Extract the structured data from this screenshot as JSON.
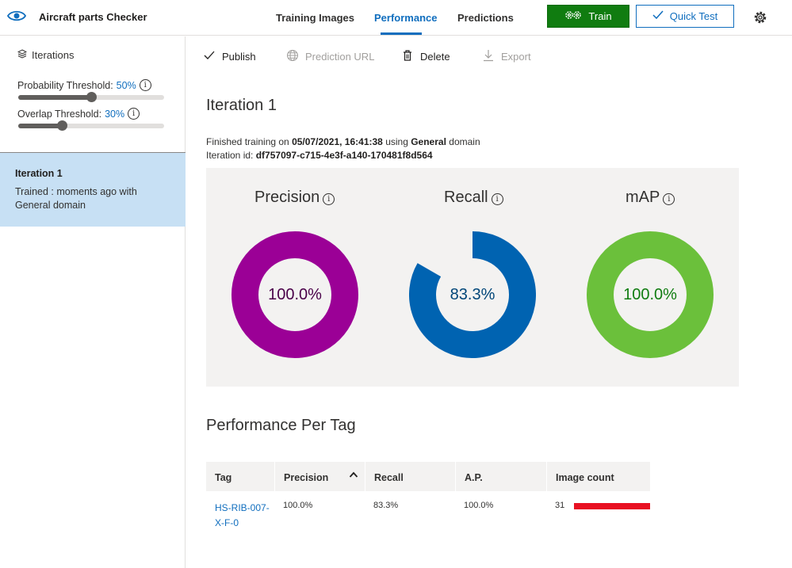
{
  "app": {
    "title": "Aircraft parts Checker",
    "tabs": [
      {
        "label": "Training Images",
        "active": false
      },
      {
        "label": "Performance",
        "active": true
      },
      {
        "label": "Predictions",
        "active": false
      }
    ],
    "train_label": "Train",
    "quick_test_label": "Quick Test",
    "icons": {
      "logo": "eye-icon",
      "train": "gears-icon",
      "quick_test": "check-icon",
      "settings": "gear-icon"
    }
  },
  "sidebar": {
    "iterations_label": "Iterations",
    "probability_label": "Probability Threshold:",
    "probability_value": "50%",
    "probability_level": 0.5,
    "overlap_label": "Overlap Threshold:",
    "overlap_value": "30%",
    "overlap_level": 0.3,
    "iteration": {
      "name": "Iteration 1",
      "description": "Trained : moments ago with General domain"
    }
  },
  "commands": [
    {
      "label": "Publish",
      "icon": "check-icon",
      "enabled": true
    },
    {
      "label": "Prediction URL",
      "icon": "globe-icon",
      "enabled": false
    },
    {
      "label": "Delete",
      "icon": "trash-icon",
      "enabled": true
    },
    {
      "label": "Export",
      "icon": "download-icon",
      "enabled": false
    }
  ],
  "main": {
    "title": "Iteration 1",
    "finished_prefix": "Finished training on",
    "finished_date": "05/07/2021, 16:41:38",
    "finished_using": "using",
    "domain_name": "General",
    "domain_suffix": "domain",
    "iteration_id_label": "Iteration id:",
    "iteration_id": "df757097-c715-4e3f-a140-170481f8d564"
  },
  "metrics": [
    {
      "name": "Precision",
      "label": "100.0%",
      "value": 1.0,
      "color": "#9b0096",
      "text_color": "#4a0049"
    },
    {
      "name": "Recall",
      "label": "83.3%",
      "value": 0.833,
      "color": "#0063b1",
      "text_color": "#004578"
    },
    {
      "name": "mAP",
      "label": "100.0%",
      "value": 1.0,
      "color": "#6bc03b",
      "text_color": "#107c10"
    }
  ],
  "per_tag": {
    "title": "Performance Per Tag",
    "columns": [
      "Tag",
      "Precision",
      "Recall",
      "A.P.",
      "Image count"
    ],
    "rows": [
      {
        "tag": "HS-RIB-007-X-F-0",
        "precision": "100.0%",
        "recall": "83.3%",
        "ap": "100.0%",
        "image_count": "31",
        "image_count_level": 1.0,
        "bar_color": "#e81123"
      }
    ]
  }
}
